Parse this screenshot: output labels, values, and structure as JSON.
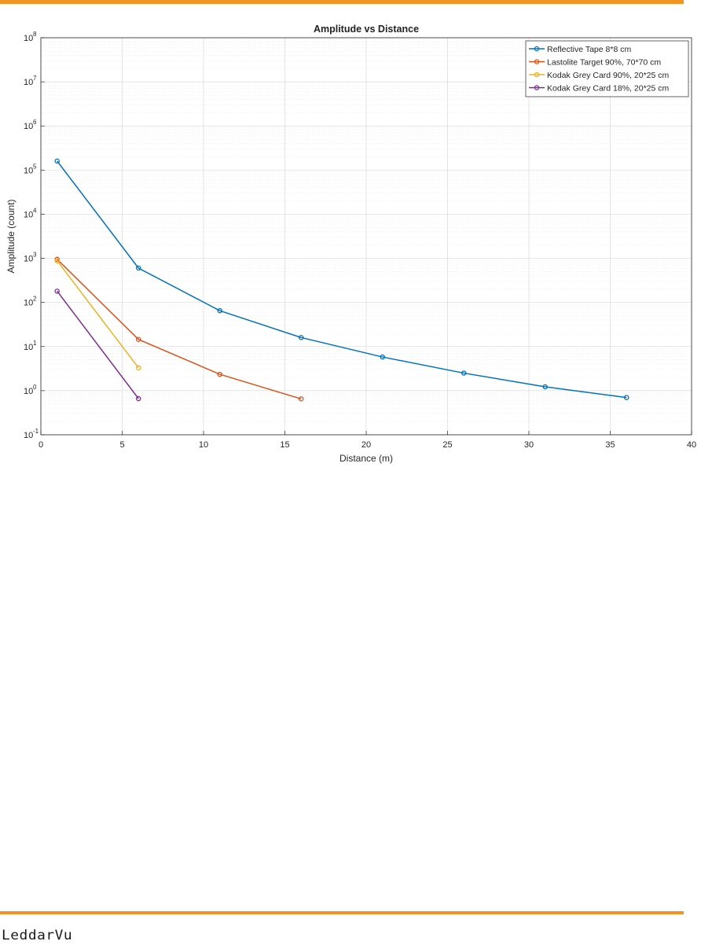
{
  "header": {
    "accent_color": "#f39323"
  },
  "footer": {
    "logo_text": "LeddarVu",
    "accent_color": "#f39323"
  },
  "chart_data": {
    "type": "line",
    "title": "Amplitude vs Distance",
    "xlabel": "Distance (m)",
    "ylabel": "Amplitude (count)",
    "xlim": [
      0,
      40
    ],
    "ylim": [
      0.1,
      100000000
    ],
    "yscale": "log",
    "grid": true,
    "minor_grid": true,
    "legend_position": "top-right",
    "x_ticks": [
      0,
      5,
      10,
      15,
      20,
      25,
      30,
      35,
      40
    ],
    "x_tick_labels": [
      "0",
      "5",
      "10",
      "15",
      "20",
      "25",
      "30",
      "35",
      "40"
    ],
    "y_ticks": [
      {
        "base": "10",
        "exp": "-1",
        "value": 0.1
      },
      {
        "base": "10",
        "exp": "0",
        "value": 1
      },
      {
        "base": "10",
        "exp": "1",
        "value": 10
      },
      {
        "base": "10",
        "exp": "2",
        "value": 100
      },
      {
        "base": "10",
        "exp": "3",
        "value": 1000
      },
      {
        "base": "10",
        "exp": "4",
        "value": 10000
      },
      {
        "base": "10",
        "exp": "5",
        "value": 100000
      },
      {
        "base": "10",
        "exp": "6",
        "value": 1000000
      },
      {
        "base": "10",
        "exp": "7",
        "value": 10000000
      },
      {
        "base": "10",
        "exp": "8",
        "value": 100000000
      }
    ],
    "series": [
      {
        "name": "Reflective Tape 8*8 cm",
        "color": "#0072bd",
        "x": [
          1,
          6,
          11,
          16,
          21,
          26,
          31,
          36
        ],
        "y": [
          160000,
          600,
          65,
          16,
          5.8,
          2.5,
          1.22,
          0.7
        ]
      },
      {
        "name": "Lastolite Target 90%, 70*70 cm",
        "color": "#d95319",
        "x": [
          1,
          6,
          11,
          16
        ],
        "y": [
          950,
          14.5,
          2.35,
          0.65
        ]
      },
      {
        "name": "Kodak Grey Card 90%, 20*25 cm",
        "color": "#edb120",
        "x": [
          1,
          6
        ],
        "y": [
          880,
          3.3
        ]
      },
      {
        "name": "Kodak Grey Card 18%, 20*25 cm",
        "color": "#7e2f8e",
        "x": [
          1,
          6
        ],
        "y": [
          180,
          0.66
        ]
      }
    ]
  }
}
